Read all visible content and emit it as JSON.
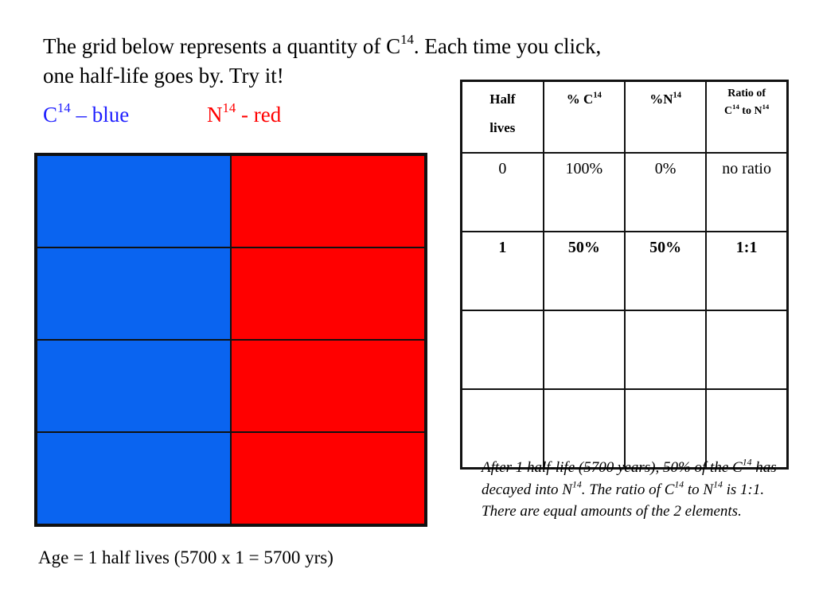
{
  "intro": {
    "line1_pre": "The grid below represents a quantity of C",
    "line1_sup": "14",
    "line1_post": ". Each time you click,",
    "line2": "one half-life goes by. Try it!"
  },
  "legend": {
    "c_base": "C",
    "c_sup": "14",
    "c_text": " – blue",
    "n_base": "N",
    "n_sup": "14",
    "n_text": " - red"
  },
  "colors": {
    "c14_blue": "#0a64f0",
    "n14_red": "#ff0000",
    "legend_blue": "#2020ff"
  },
  "age_label": "Age = 1 half lives (5700 x 1 = 5700 yrs)",
  "table": {
    "headers": {
      "half_lives_1": "Half",
      "half_lives_2": "lives",
      "pct_c_pre": "% C",
      "pct_c_sup": "14",
      "pct_n_pre": "%N",
      "pct_n_sup": "14",
      "ratio_1": "Ratio of",
      "ratio_c": "C",
      "ratio_c_sup": "14",
      "ratio_to": " to N",
      "ratio_n_sup": "14"
    },
    "rows": [
      {
        "half_lives": "0",
        "pct_c": "100%",
        "pct_n": "0%",
        "ratio": "no ratio"
      },
      {
        "half_lives": "1",
        "pct_c": "50%",
        "pct_n": "50%",
        "ratio": "1:1"
      },
      {
        "half_lives": "",
        "pct_c": "",
        "pct_n": "",
        "ratio": ""
      },
      {
        "half_lives": "",
        "pct_c": "",
        "pct_n": "",
        "ratio": ""
      }
    ]
  },
  "note": {
    "p1": "After 1 half-life (5700 years), 50% of the C",
    "sup1": "14",
    "p2": " has decayed into N",
    "sup2": "14",
    "p3": ". The ratio of C",
    "sup3": "14",
    "p4": " to N",
    "sup4": "14",
    "p5": " is 1:1. There are equal amounts of the 2 elements."
  }
}
